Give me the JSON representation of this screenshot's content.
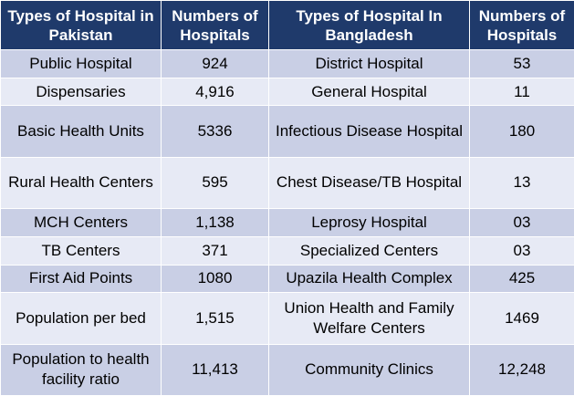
{
  "table": {
    "headers": [
      "Types of Hospital in Pakistan",
      "Numbers of Hospitals",
      "Types of Hospital In Bangladesh",
      "Numbers of Hospitals"
    ],
    "rows": [
      [
        "Public Hospital",
        "924",
        "District Hospital",
        "53"
      ],
      [
        "Dispensaries",
        "4,916",
        "General Hospital",
        "11"
      ],
      [
        "Basic Health Units",
        "5336",
        "Infectious Disease Hospital",
        "180"
      ],
      [
        "Rural Health Centers",
        "595",
        "Chest Disease/TB Hospital",
        "13"
      ],
      [
        "MCH Centers",
        "1,138",
        "Leprosy Hospital",
        "03"
      ],
      [
        "TB Centers",
        "371",
        "Specialized Centers",
        "03"
      ],
      [
        "First Aid Points",
        "1080",
        "Upazila Health Complex",
        "425"
      ],
      [
        "Population per bed",
        "1,515",
        "Union Health and Family Welfare Centers",
        "1469"
      ],
      [
        "Population to health facility ratio",
        "11,413",
        "Community Clinics",
        "12,248"
      ]
    ]
  }
}
